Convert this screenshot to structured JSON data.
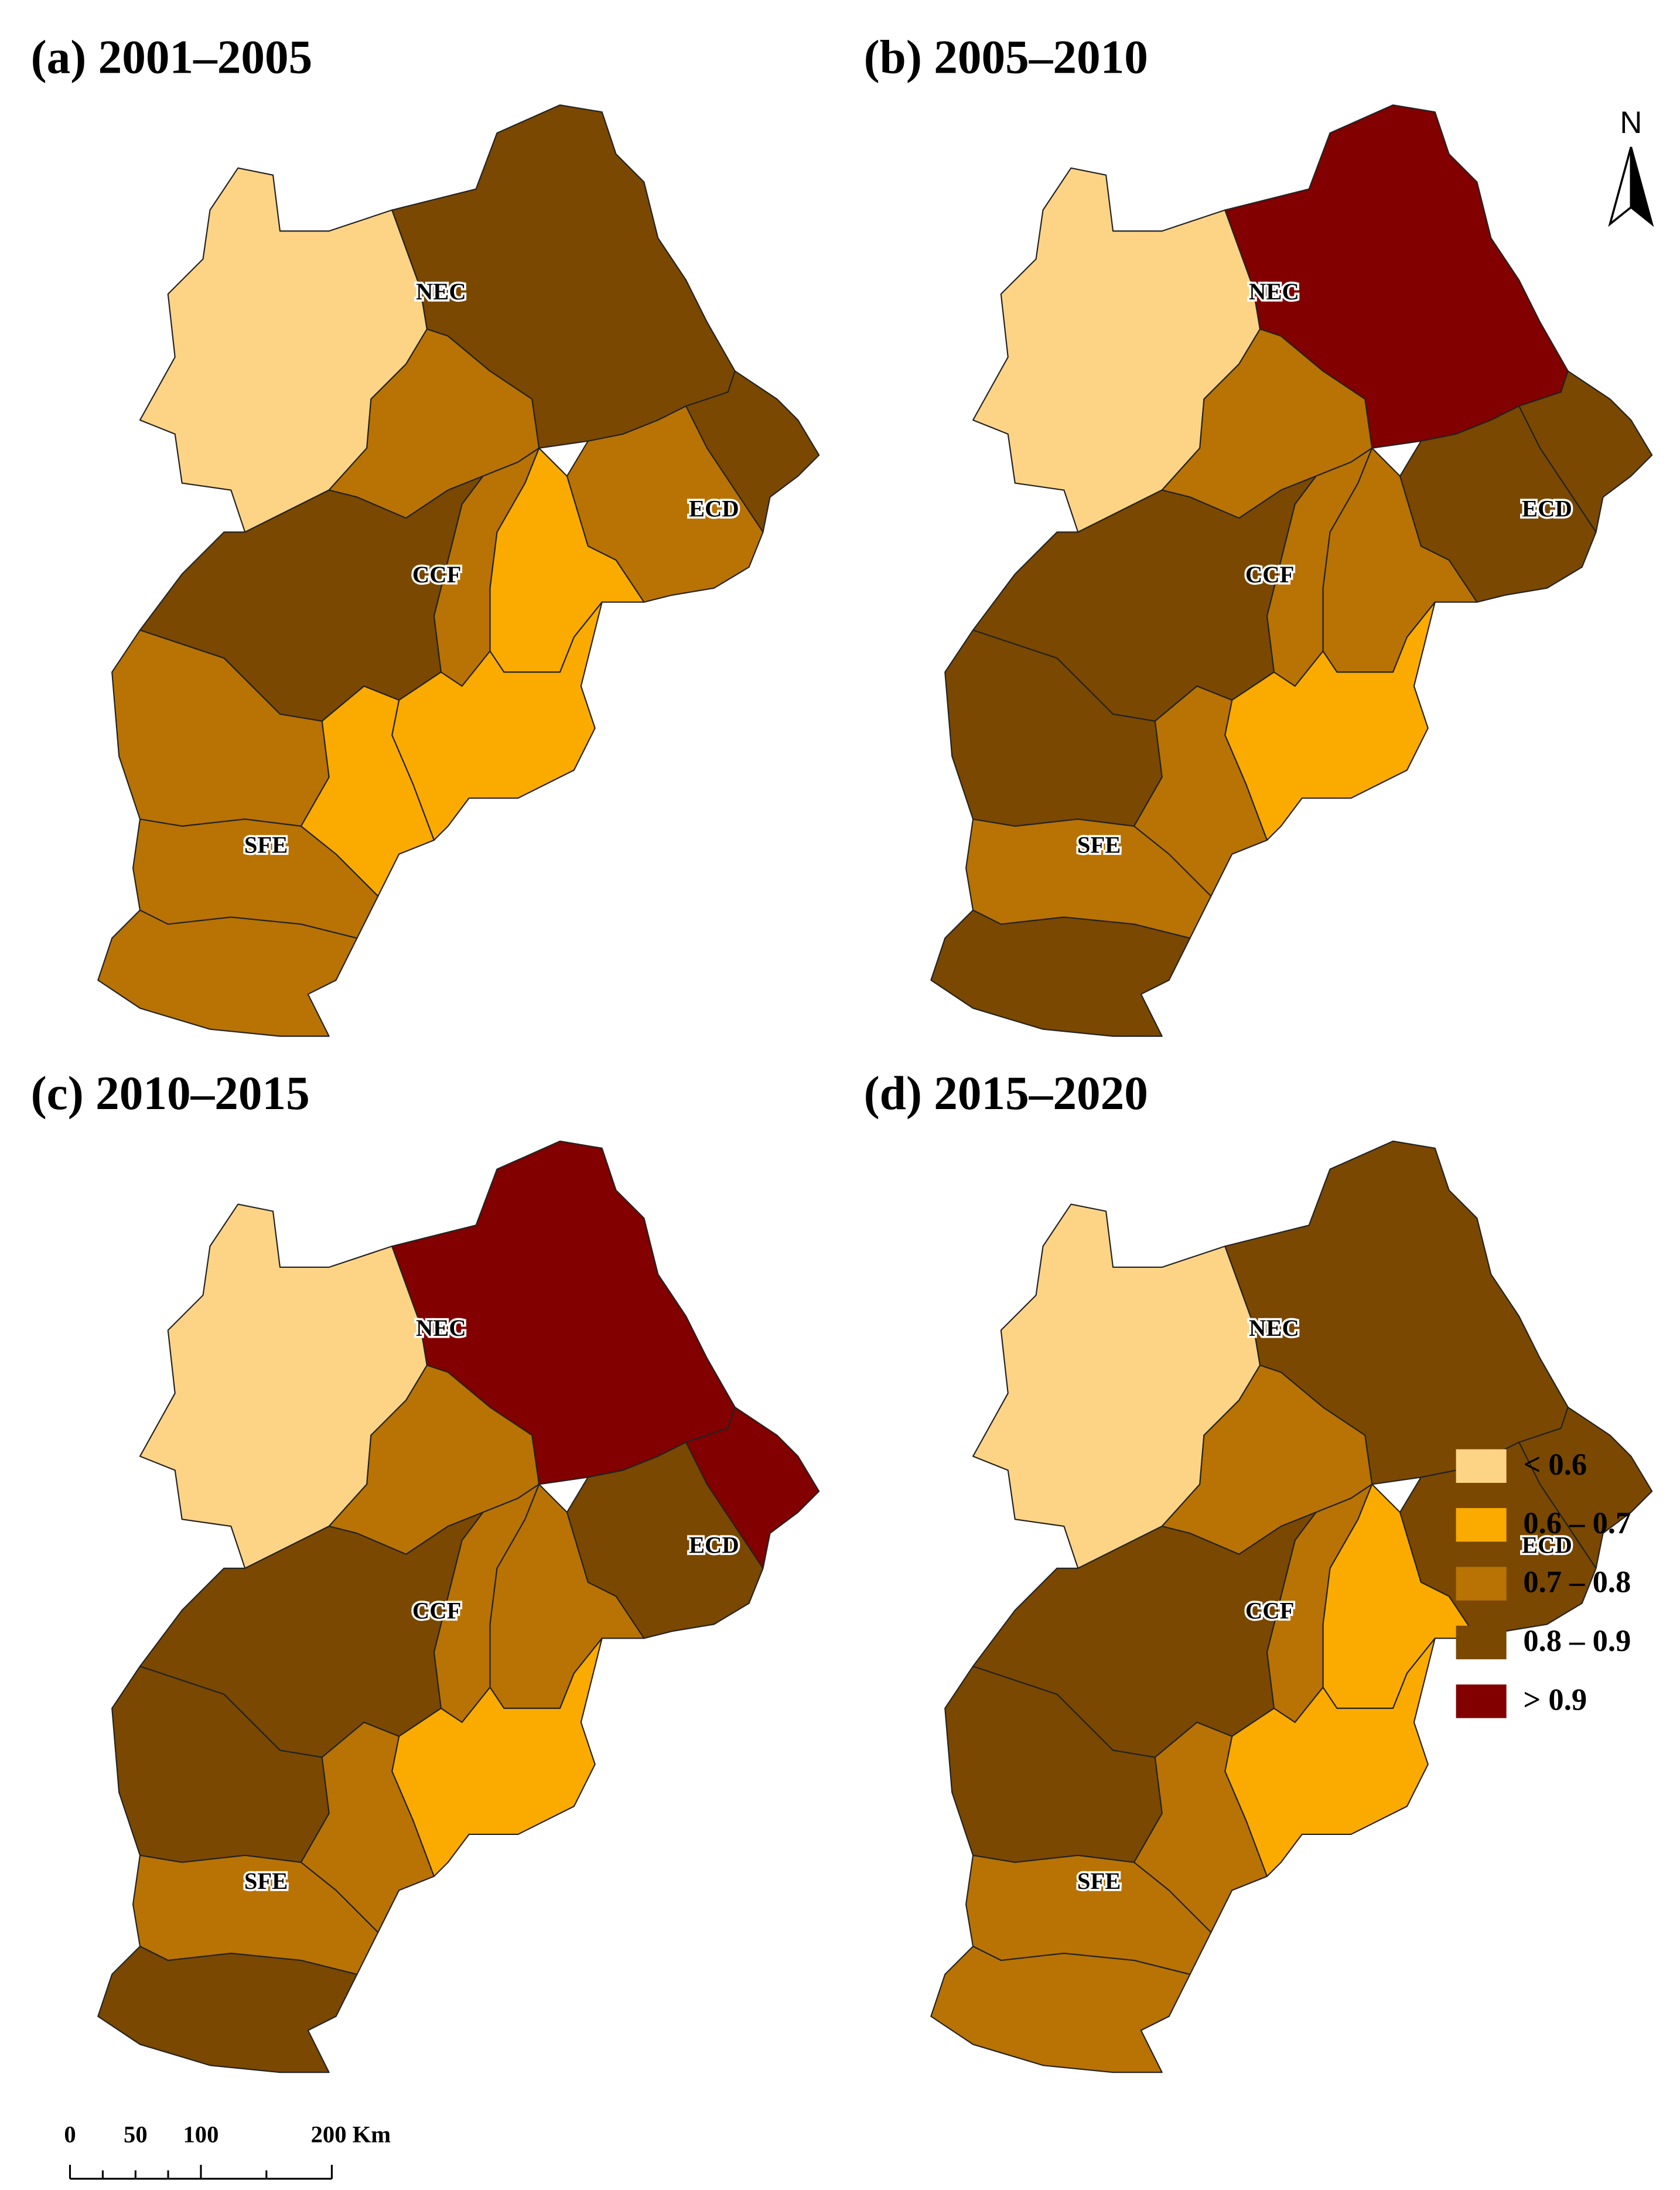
{
  "panels": [
    {
      "title": "(a) 2001–2005",
      "region_colors": [
        "#fdd486",
        "#7a4800",
        "#7a4800",
        "#b87304",
        "#b87304",
        "#fbab00",
        "#b87304",
        "#7a4800",
        "#fbab00",
        "#fbab00",
        "#b87304",
        "#b87304",
        "#b87304"
      ]
    },
    {
      "title": "(b) 2005–2010",
      "region_colors": [
        "#fdd486",
        "#820000",
        "#7a4800",
        "#7a4800",
        "#b87304",
        "#b87304",
        "#b87304",
        "#7a4800",
        "#fbab00",
        "#b87304",
        "#7a4800",
        "#b87304",
        "#7a4800"
      ]
    },
    {
      "title": "(c) 2010–2015",
      "region_colors": [
        "#fdd486",
        "#820000",
        "#820000",
        "#7a4800",
        "#b87304",
        "#b87304",
        "#b87304",
        "#7a4800",
        "#fbab00",
        "#b87304",
        "#7a4800",
        "#b87304",
        "#7a4800"
      ]
    },
    {
      "title": "(d) 2015–2020",
      "region_colors": [
        "#fdd486",
        "#7a4800",
        "#7a4800",
        "#7a4800",
        "#b87304",
        "#fbab00",
        "#b87304",
        "#7a4800",
        "#fbab00",
        "#b87304",
        "#7a4800",
        "#b87304",
        "#b87304"
      ]
    }
  ],
  "region_labels": [
    "NEC",
    "ECD",
    "CCF",
    "SFE"
  ],
  "legend": [
    {
      "label": "< 0.6",
      "color": "#fdd486"
    },
    {
      "label": "0.6 – 0.7",
      "color": "#fbab00"
    },
    {
      "label": "0.7 – 0.8",
      "color": "#b87304"
    },
    {
      "label": "0.8 – 0.9",
      "color": "#7a4800"
    },
    {
      "label": "> 0.9",
      "color": "#820000"
    }
  ],
  "scale_bar": {
    "labels": [
      "0",
      "50",
      "100",
      "200 Km"
    ]
  },
  "north": "N"
}
